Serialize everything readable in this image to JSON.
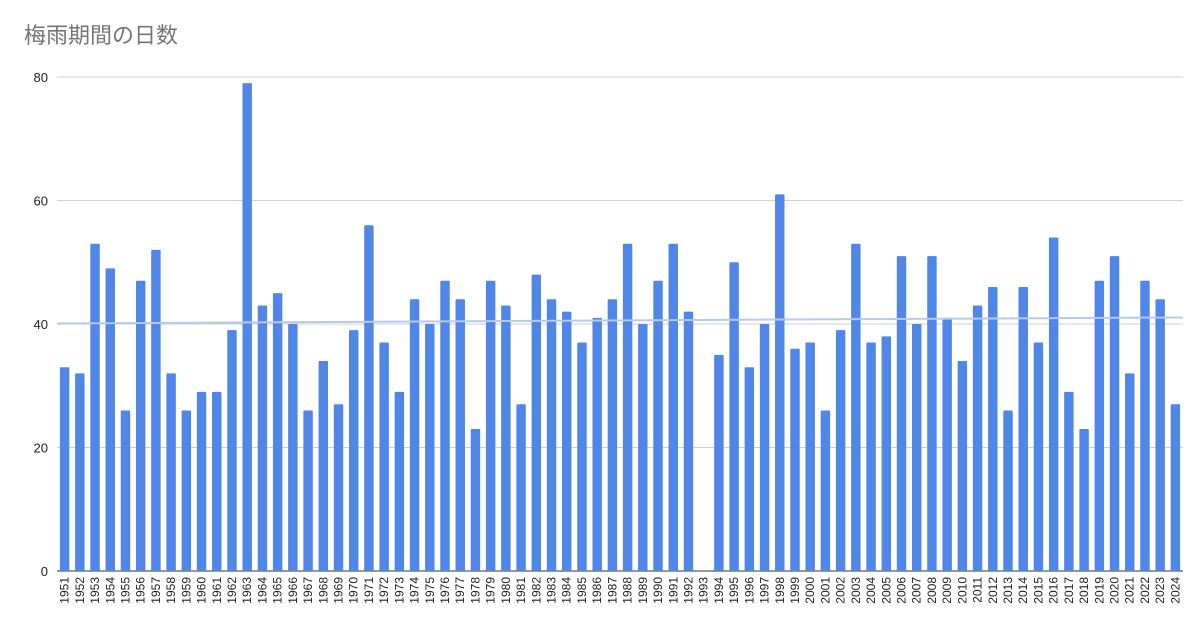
{
  "chart_data": {
    "type": "bar",
    "title": "梅雨期間の日数",
    "xlabel": "",
    "ylabel": "",
    "ylim": [
      0,
      80
    ],
    "yticks": [
      0,
      20,
      40,
      60,
      80
    ],
    "grid": true,
    "trendline": true,
    "colors": {
      "bar": "#4f86e8",
      "grid": "#cfcfcf",
      "trend": "#b7c9ec"
    },
    "categories": [
      "1951",
      "1952",
      "1953",
      "1954",
      "1955",
      "1956",
      "1957",
      "1958",
      "1959",
      "1960",
      "1961",
      "1962",
      "1963",
      "1964",
      "1965",
      "1966",
      "1967",
      "1968",
      "1969",
      "1970",
      "1971",
      "1972",
      "1973",
      "1974",
      "1975",
      "1976",
      "1977",
      "1978",
      "1979",
      "1980",
      "1981",
      "1982",
      "1983",
      "1984",
      "1985",
      "1986",
      "1987",
      "1988",
      "1989",
      "1990",
      "1991",
      "1992",
      "1993",
      "1994",
      "1995",
      "1996",
      "1997",
      "1998",
      "1999",
      "2000",
      "2001",
      "2002",
      "2003",
      "2004",
      "2005",
      "2006",
      "2007",
      "2008",
      "2009",
      "2010",
      "2011",
      "2012",
      "2013",
      "2014",
      "2015",
      "2016",
      "2017",
      "2018",
      "2019",
      "2020",
      "2021",
      "2022",
      "2023",
      "2024"
    ],
    "values": [
      33,
      32,
      53,
      49,
      26,
      47,
      52,
      32,
      26,
      29,
      29,
      39,
      79,
      43,
      45,
      40,
      26,
      34,
      27,
      39,
      56,
      37,
      29,
      44,
      40,
      47,
      44,
      23,
      47,
      43,
      27,
      48,
      44,
      42,
      37,
      41,
      44,
      53,
      40,
      47,
      53,
      42,
      null,
      35,
      50,
      33,
      40,
      61,
      36,
      37,
      26,
      39,
      53,
      37,
      38,
      51,
      40,
      51,
      41,
      34,
      43,
      46,
      26,
      46,
      37,
      54,
      29,
      23,
      47,
      51,
      32,
      47,
      44,
      27
    ]
  }
}
